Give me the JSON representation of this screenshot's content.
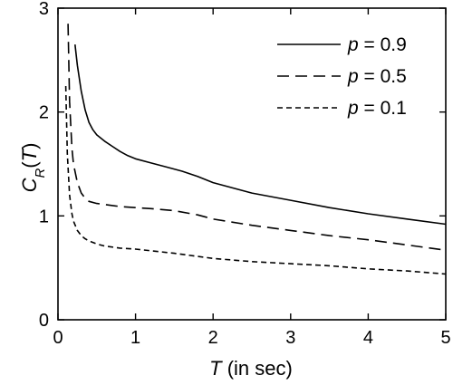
{
  "chart_data": {
    "type": "line",
    "title": "",
    "xlabel": {
      "symbol": "T",
      "suffix": " (in sec)"
    },
    "ylabel": {
      "symbol": "C",
      "subscript": "R",
      "argument": "T"
    },
    "xlim": [
      0,
      5
    ],
    "ylim": [
      0,
      3
    ],
    "x_ticks": [
      0,
      1,
      2,
      3,
      4,
      5
    ],
    "y_ticks": [
      0,
      1,
      2,
      3
    ],
    "grid": false,
    "legend_position": "top-right",
    "series": [
      {
        "name": "p = 0.9",
        "legend_symbol": "p",
        "legend_value": " = 0.9",
        "dash": "solid",
        "color": "#000000",
        "x": [
          0.22,
          0.25,
          0.3,
          0.35,
          0.4,
          0.45,
          0.5,
          0.6,
          0.7,
          0.8,
          0.9,
          1.0,
          1.2,
          1.4,
          1.6,
          1.8,
          2.0,
          2.5,
          3.0,
          3.5,
          4.0,
          4.5,
          5.0
        ],
        "y": [
          2.65,
          2.45,
          2.2,
          2.02,
          1.9,
          1.83,
          1.78,
          1.72,
          1.67,
          1.62,
          1.58,
          1.55,
          1.51,
          1.47,
          1.43,
          1.38,
          1.32,
          1.22,
          1.15,
          1.08,
          1.02,
          0.97,
          0.92
        ]
      },
      {
        "name": "p = 0.5",
        "legend_symbol": "p",
        "legend_value": " = 0.5",
        "dash": "long-dash",
        "color": "#000000",
        "x": [
          0.13,
          0.15,
          0.18,
          0.2,
          0.25,
          0.3,
          0.35,
          0.4,
          0.5,
          0.6,
          0.8,
          1.0,
          1.2,
          1.5,
          1.8,
          2.0,
          2.5,
          3.0,
          3.5,
          4.0,
          4.5,
          5.0
        ],
        "y": [
          2.85,
          2.1,
          1.65,
          1.5,
          1.32,
          1.22,
          1.17,
          1.14,
          1.12,
          1.11,
          1.09,
          1.08,
          1.07,
          1.05,
          1.01,
          0.97,
          0.91,
          0.86,
          0.81,
          0.77,
          0.72,
          0.67
        ]
      },
      {
        "name": "p = 0.1",
        "legend_symbol": "p",
        "legend_value": " = 0.1",
        "dash": "short-dash",
        "color": "#000000",
        "x": [
          0.1,
          0.12,
          0.15,
          0.18,
          0.2,
          0.25,
          0.3,
          0.35,
          0.4,
          0.5,
          0.6,
          0.8,
          1.0,
          1.5,
          2.0,
          2.5,
          3.0,
          3.5,
          4.0,
          4.5,
          5.0
        ],
        "y": [
          2.25,
          1.6,
          1.2,
          1.02,
          0.95,
          0.86,
          0.81,
          0.78,
          0.76,
          0.73,
          0.71,
          0.69,
          0.68,
          0.64,
          0.59,
          0.56,
          0.54,
          0.52,
          0.49,
          0.47,
          0.44
        ]
      }
    ]
  }
}
